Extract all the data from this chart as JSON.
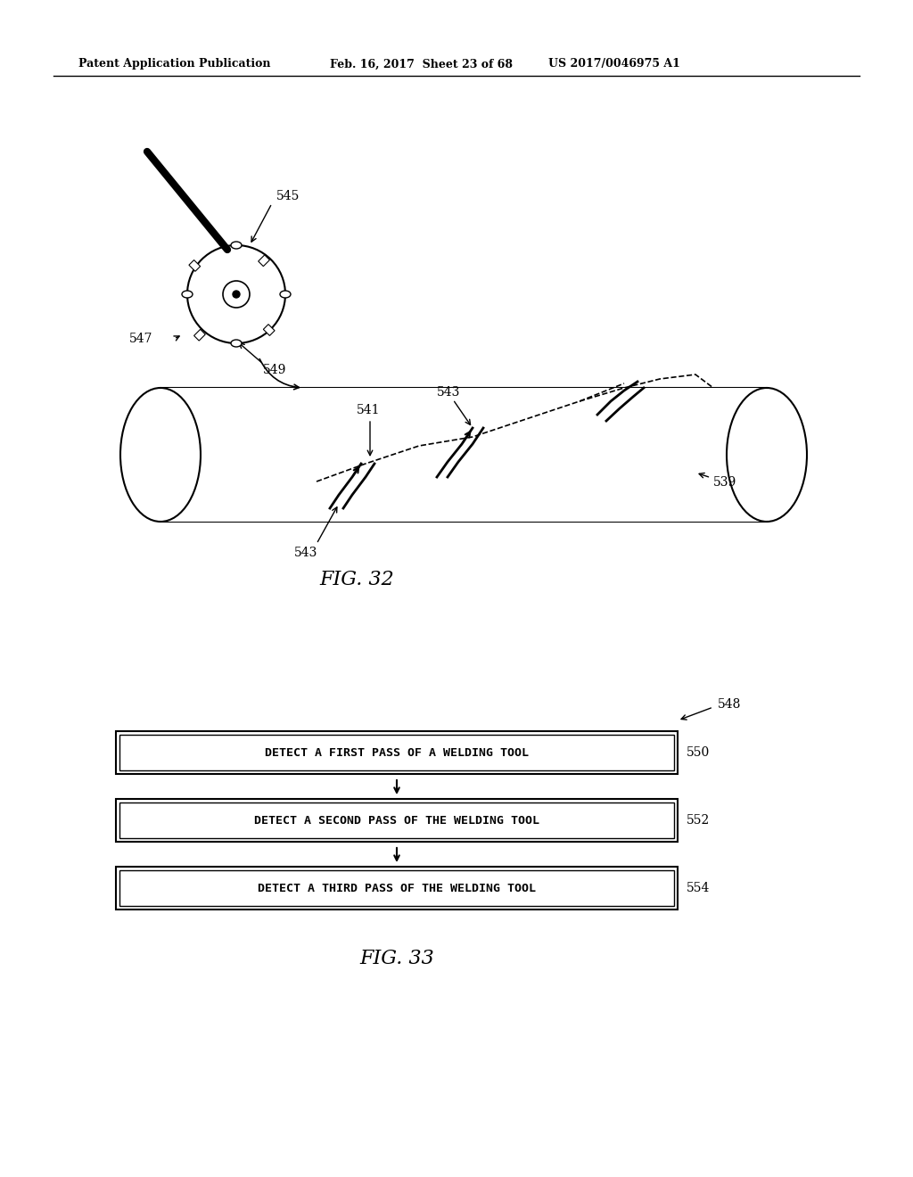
{
  "header_left": "Patent Application Publication",
  "header_mid": "Feb. 16, 2017  Sheet 23 of 68",
  "header_right": "US 2017/0046975 A1",
  "fig32_label": "FIG. 32",
  "fig33_label": "FIG. 33",
  "box1_text": "DETECT A FIRST PASS OF A WELDING TOOL",
  "box2_text": "DETECT A SECOND PASS OF THE WELDING TOOL",
  "box3_text": "DETECT A THIRD PASS OF THE WELDING TOOL",
  "label_548": "548",
  "label_550": "550",
  "label_552": "552",
  "label_554": "554",
  "label_539": "539",
  "label_541": "541",
  "label_543a": "543",
  "label_543b": "543",
  "label_545": "545",
  "label_547": "547",
  "label_549": "549",
  "bg_color": "#ffffff",
  "line_color": "#000000"
}
